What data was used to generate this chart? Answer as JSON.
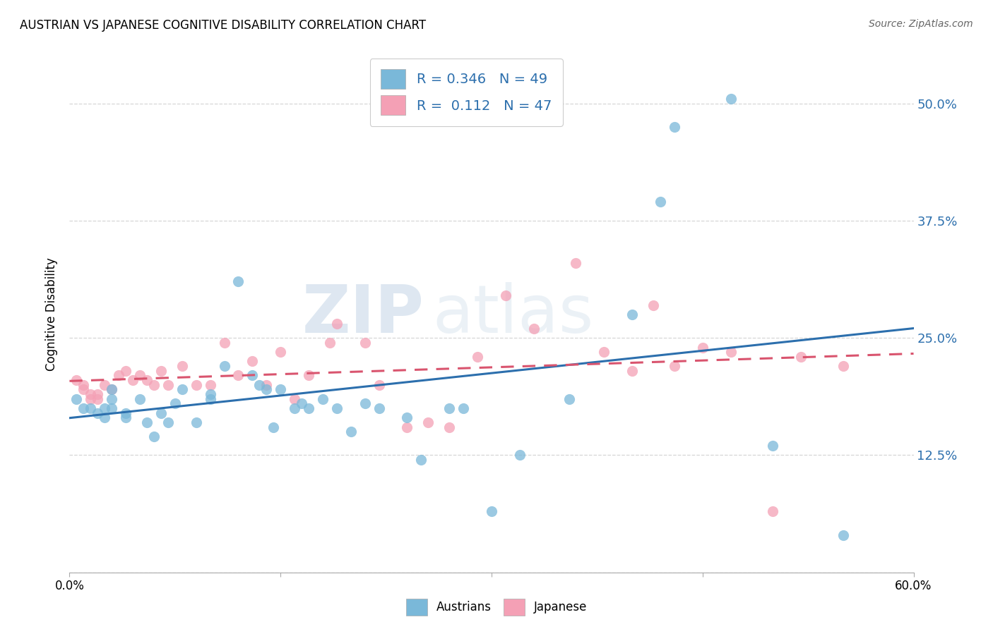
{
  "title": "AUSTRIAN VS JAPANESE COGNITIVE DISABILITY CORRELATION CHART",
  "source": "Source: ZipAtlas.com",
  "ylabel": "Cognitive Disability",
  "yticks": [
    0.0,
    0.125,
    0.25,
    0.375,
    0.5
  ],
  "ytick_labels": [
    "",
    "12.5%",
    "25.0%",
    "37.5%",
    "50.0%"
  ],
  "xlim": [
    0.0,
    0.6
  ],
  "ylim": [
    0.0,
    0.55
  ],
  "legend_r_austrians": "0.346",
  "legend_n_austrians": "49",
  "legend_r_japanese": "0.112",
  "legend_n_japanese": "47",
  "color_austrians": "#7ab8d9",
  "color_japanese": "#f4a0b5",
  "color_line_austrians": "#2c6fad",
  "color_line_japanese": "#d9546e",
  "watermark_zip": "ZIP",
  "watermark_atlas": "atlas",
  "austrians_x": [
    0.005,
    0.01,
    0.015,
    0.02,
    0.025,
    0.025,
    0.03,
    0.03,
    0.03,
    0.04,
    0.04,
    0.05,
    0.055,
    0.06,
    0.065,
    0.07,
    0.075,
    0.08,
    0.09,
    0.1,
    0.1,
    0.11,
    0.12,
    0.13,
    0.135,
    0.14,
    0.145,
    0.15,
    0.16,
    0.165,
    0.17,
    0.18,
    0.19,
    0.2,
    0.21,
    0.22,
    0.24,
    0.25,
    0.27,
    0.28,
    0.3,
    0.32,
    0.355,
    0.4,
    0.42,
    0.43,
    0.47,
    0.5,
    0.55
  ],
  "austrians_y": [
    0.185,
    0.175,
    0.175,
    0.17,
    0.175,
    0.165,
    0.195,
    0.185,
    0.175,
    0.17,
    0.165,
    0.185,
    0.16,
    0.145,
    0.17,
    0.16,
    0.18,
    0.195,
    0.16,
    0.185,
    0.19,
    0.22,
    0.31,
    0.21,
    0.2,
    0.195,
    0.155,
    0.195,
    0.175,
    0.18,
    0.175,
    0.185,
    0.175,
    0.15,
    0.18,
    0.175,
    0.165,
    0.12,
    0.175,
    0.175,
    0.065,
    0.125,
    0.185,
    0.275,
    0.395,
    0.475,
    0.505,
    0.135,
    0.04
  ],
  "japanese_x": [
    0.005,
    0.01,
    0.01,
    0.015,
    0.015,
    0.02,
    0.02,
    0.025,
    0.03,
    0.035,
    0.04,
    0.045,
    0.05,
    0.055,
    0.06,
    0.065,
    0.07,
    0.08,
    0.09,
    0.1,
    0.11,
    0.12,
    0.13,
    0.14,
    0.15,
    0.16,
    0.17,
    0.185,
    0.19,
    0.21,
    0.22,
    0.24,
    0.255,
    0.27,
    0.29,
    0.31,
    0.33,
    0.36,
    0.38,
    0.4,
    0.415,
    0.43,
    0.45,
    0.47,
    0.5,
    0.52,
    0.55
  ],
  "japanese_y": [
    0.205,
    0.2,
    0.195,
    0.185,
    0.19,
    0.185,
    0.19,
    0.2,
    0.195,
    0.21,
    0.215,
    0.205,
    0.21,
    0.205,
    0.2,
    0.215,
    0.2,
    0.22,
    0.2,
    0.2,
    0.245,
    0.21,
    0.225,
    0.2,
    0.235,
    0.185,
    0.21,
    0.245,
    0.265,
    0.245,
    0.2,
    0.155,
    0.16,
    0.155,
    0.23,
    0.295,
    0.26,
    0.33,
    0.235,
    0.215,
    0.285,
    0.22,
    0.24,
    0.235,
    0.065,
    0.23,
    0.22
  ]
}
